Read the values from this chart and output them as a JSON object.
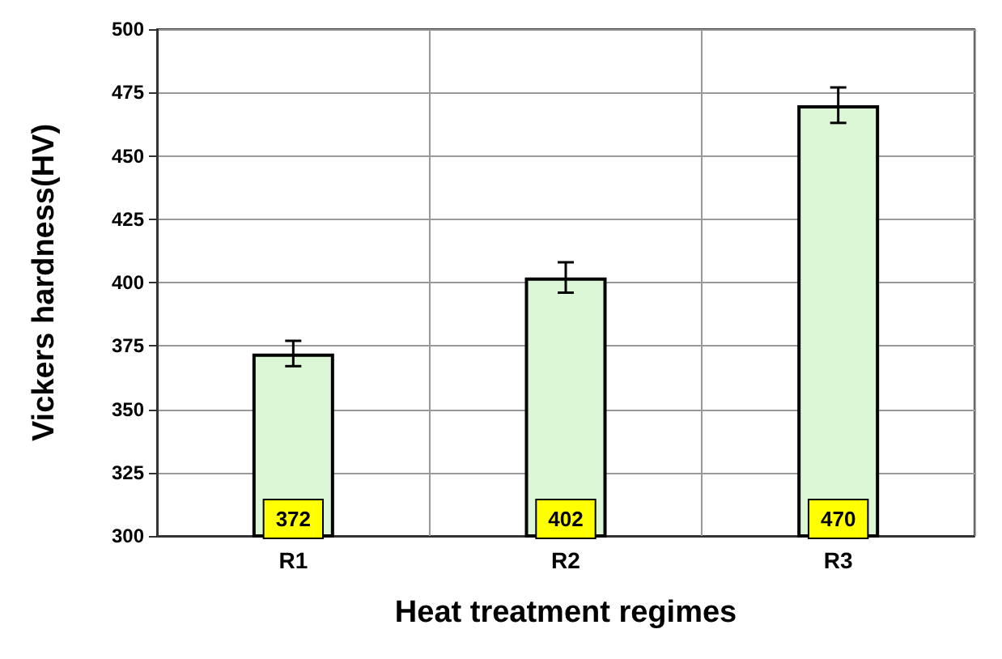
{
  "chart_data": {
    "type": "bar",
    "xlabel": "Heat treatment regimes",
    "ylabel": "Vickers hardness(HV)",
    "categories": [
      "R1",
      "R2",
      "R3"
    ],
    "values": [
      372,
      402,
      470
    ],
    "errors": [
      5,
      6,
      7
    ],
    "color": "#dcf7d6",
    "ylim": [
      300,
      500
    ],
    "yticks": [
      300,
      325,
      350,
      375,
      400,
      425,
      450,
      475,
      500
    ],
    "grid": true,
    "data_labels": true
  }
}
